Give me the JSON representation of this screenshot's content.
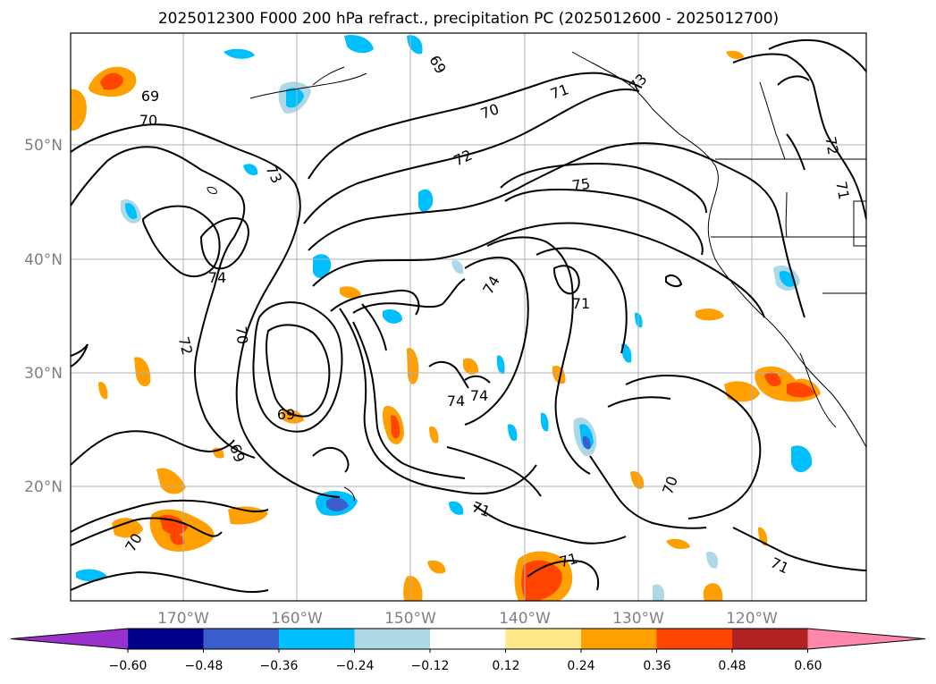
{
  "title": "2025012300 F000 200 hPa refract., precipitation PC (2025012600 - 2025012700)",
  "lat_labels": [
    "50°N",
    "40°N",
    "30°N",
    "20°N"
  ],
  "lon_labels": [
    "170°W",
    "160°W",
    "150°W",
    "140°W",
    "130°W",
    "120°W"
  ],
  "contour_labels": [
    "69",
    "70",
    "69",
    "71",
    "73",
    "70",
    "72",
    "73",
    "75",
    "74",
    "74",
    "70",
    "72",
    "71",
    "69",
    "74",
    "74",
    "69",
    "70",
    "71",
    "71",
    "70",
    "71",
    "72",
    "71"
  ],
  "colorbar": {
    "ticks": [
      "−0.60",
      "−0.48",
      "−0.36",
      "−0.24",
      "−0.12",
      "0.12",
      "0.24",
      "0.36",
      "0.48",
      "0.60"
    ],
    "colors": [
      "#9932cc",
      "#00008b",
      "#3a5fcd",
      "#00bfff",
      "#add8e6",
      "#ffffff",
      "#ffe78a",
      "#ffa000",
      "#ff4500",
      "#b22222",
      "#ff88aa"
    ]
  },
  "colors": {
    "contour": "#000000",
    "grid": "#b0b0b0",
    "axis_label": "#808080"
  }
}
